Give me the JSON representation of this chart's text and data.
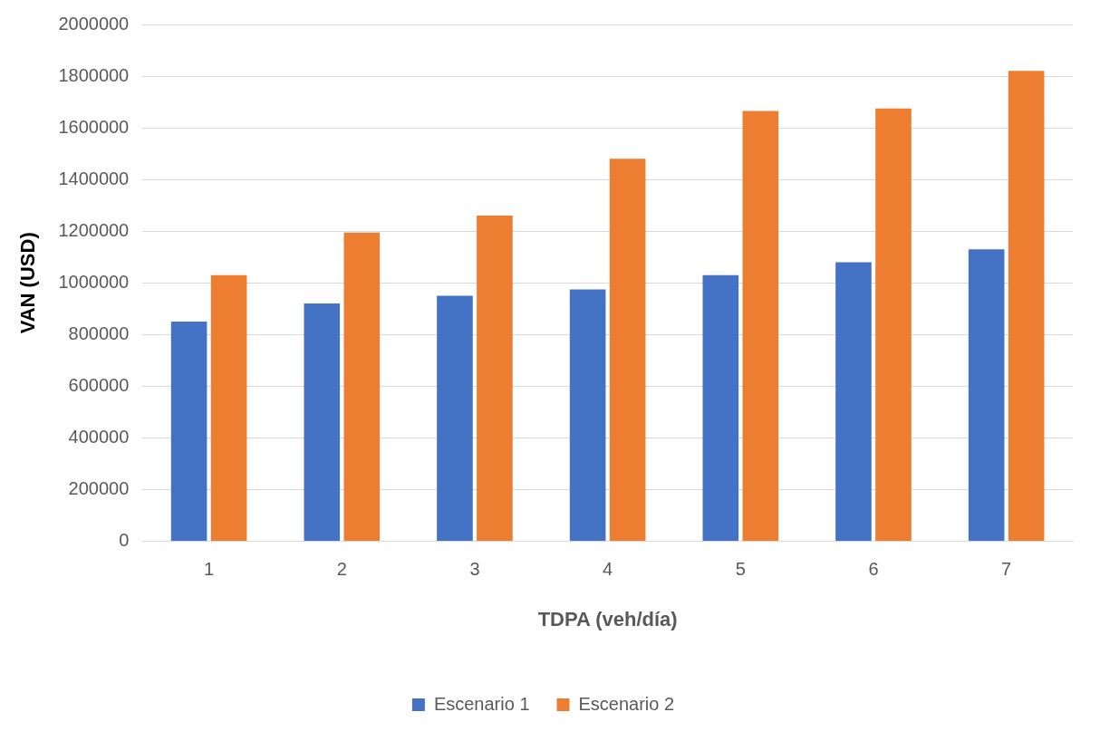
{
  "chart_data": {
    "type": "bar",
    "xlabel": "TDPA (veh/día)",
    "ylabel": "VAN (USD)",
    "categories": [
      "1",
      "2",
      "3",
      "4",
      "5",
      "6",
      "7"
    ],
    "series": [
      {
        "name": "Escenario 1",
        "color": "#4472c4",
        "values": [
          850000,
          920000,
          950000,
          975000,
          1030000,
          1080000,
          1130000
        ]
      },
      {
        "name": "Escenario 2",
        "color": "#ed7d31",
        "values": [
          1030000,
          1195000,
          1260000,
          1480000,
          1665000,
          1675000,
          1820000
        ]
      }
    ],
    "ylim": [
      0,
      2000000
    ],
    "yticks": [
      0,
      200000,
      400000,
      600000,
      800000,
      1000000,
      1200000,
      1400000,
      1600000,
      1800000,
      2000000
    ],
    "grid": "y",
    "legend": "bottom"
  }
}
